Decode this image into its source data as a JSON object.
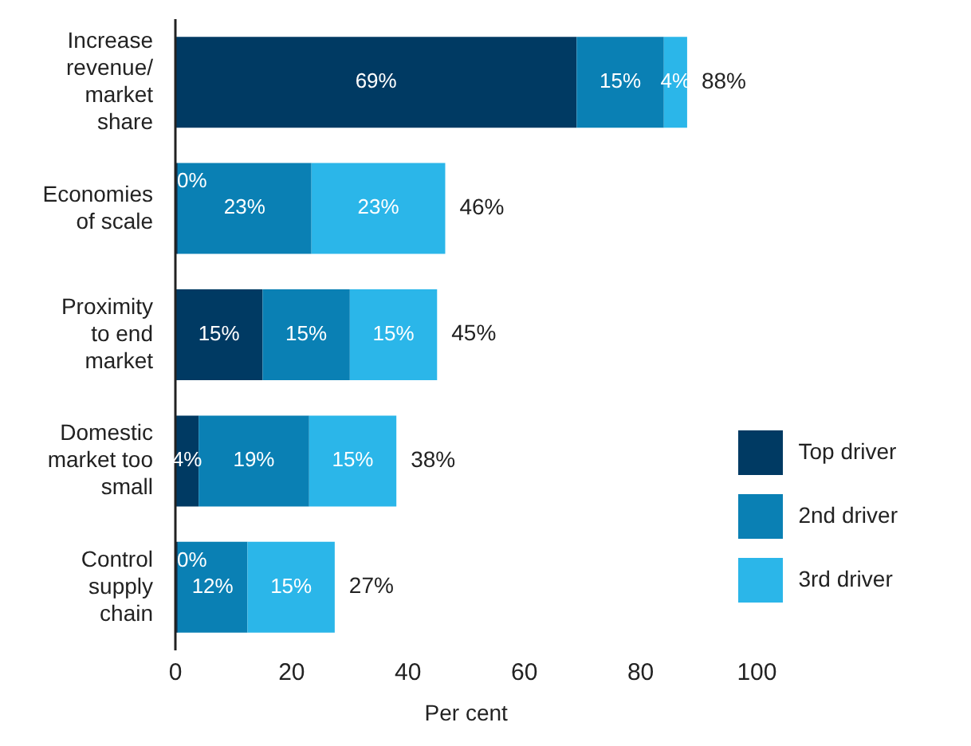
{
  "chart_data": {
    "type": "bar",
    "orientation": "horizontal",
    "stacked": true,
    "categories": [
      "Increase revenue/ market share",
      "Economies of scale",
      "Proximity to end market",
      "Domestic market too small",
      "Control supply chain"
    ],
    "series": [
      {
        "name": "Top driver",
        "color": "#003a63",
        "values": [
          69,
          0.4,
          15,
          4,
          0.4
        ],
        "value_labels": [
          "69%",
          "0%",
          "15%",
          "4%",
          "0%"
        ]
      },
      {
        "name": "2nd driver",
        "color": "#0a80b4",
        "values": [
          15,
          23,
          15,
          19,
          12
        ],
        "value_labels": [
          "15%",
          "23%",
          "15%",
          "19%",
          "12%"
        ]
      },
      {
        "name": "3rd driver",
        "color": "#2bb6e9",
        "values": [
          4,
          23,
          15,
          15,
          15
        ],
        "value_labels": [
          "4%",
          "23%",
          "15%",
          "15%",
          "15%"
        ]
      }
    ],
    "totals": [
      "88%",
      "46%",
      "45%",
      "38%",
      "27%"
    ],
    "xlim": [
      0,
      100
    ],
    "xticks": [
      0,
      20,
      40,
      60,
      80,
      100
    ],
    "xlabel": "Per cent",
    "grid": false,
    "legend": "right"
  }
}
